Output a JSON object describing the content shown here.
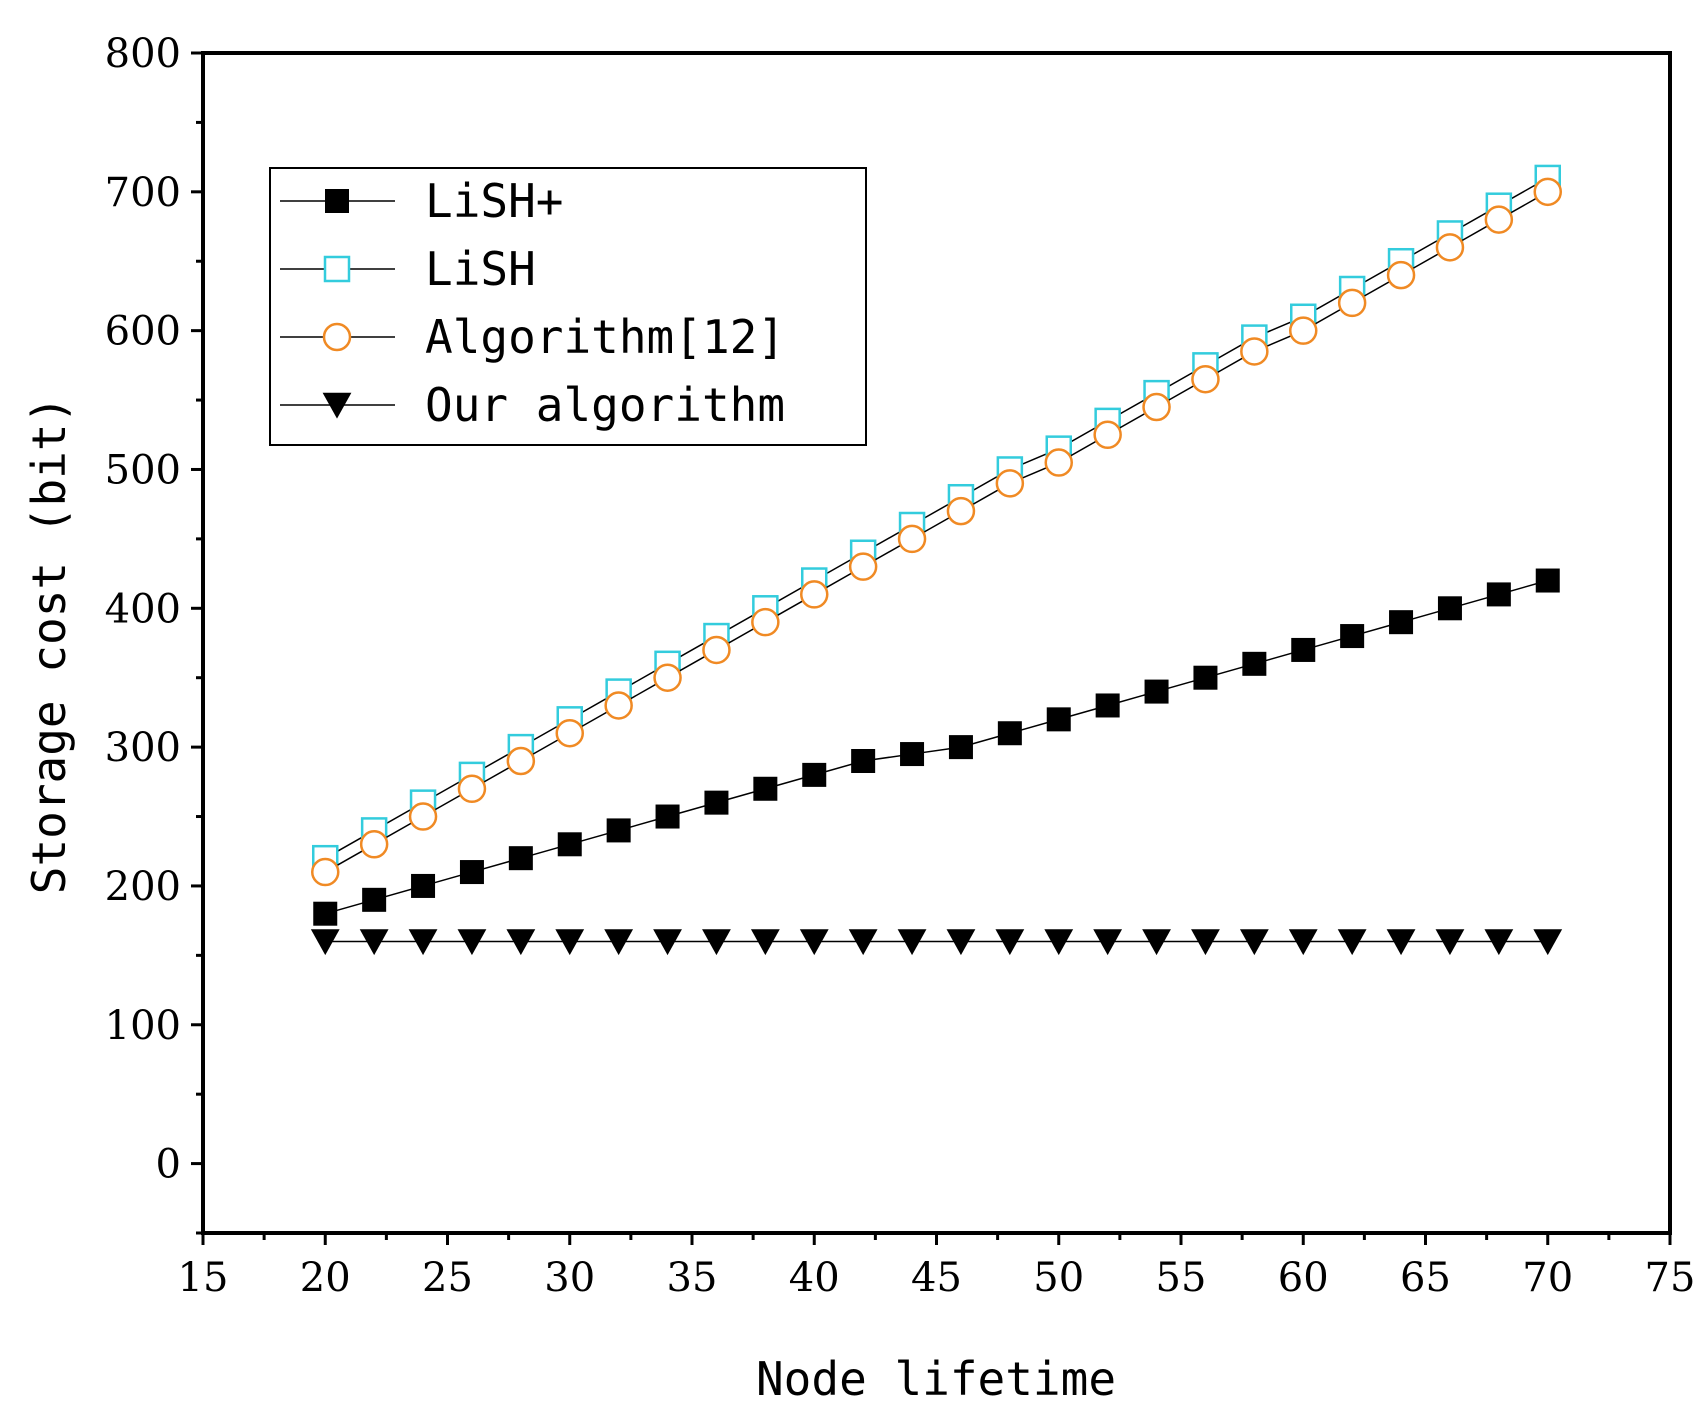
{
  "chart_data": {
    "type": "line",
    "title": "",
    "xlabel": "Node lifetime",
    "ylabel": "Storage cost (bit)",
    "xlim": [
      15,
      75
    ],
    "ylim": [
      -50,
      800
    ],
    "x_ticks": [
      15,
      20,
      25,
      30,
      35,
      40,
      45,
      50,
      55,
      60,
      65,
      70,
      75
    ],
    "y_ticks": [
      0,
      100,
      200,
      300,
      400,
      500,
      600,
      700,
      800
    ],
    "x_tick_labels": [
      "15",
      "20",
      "25",
      "30",
      "35",
      "40",
      "45",
      "50",
      "55",
      "60",
      "65",
      "70",
      "75"
    ],
    "y_tick_labels": [
      "0",
      "100",
      "200",
      "300",
      "400",
      "500",
      "600",
      "700",
      "800"
    ],
    "legend_position": "top-left",
    "x": [
      20,
      22,
      24,
      26,
      28,
      30,
      32,
      34,
      36,
      38,
      40,
      42,
      44,
      46,
      48,
      50,
      52,
      54,
      56,
      58,
      60,
      62,
      64,
      66,
      68,
      70
    ],
    "series": [
      {
        "name": "LiSH+",
        "marker": "filled-square",
        "color": "#000000",
        "values": [
          180,
          190,
          200,
          210,
          220,
          230,
          240,
          250,
          260,
          270,
          280,
          290,
          295,
          300,
          310,
          320,
          330,
          340,
          350,
          360,
          370,
          380,
          390,
          400,
          410,
          420
        ]
      },
      {
        "name": "LiSH",
        "marker": "open-square",
        "color": "#33CCDD",
        "values": [
          220,
          240,
          260,
          280,
          300,
          320,
          340,
          360,
          380,
          400,
          420,
          440,
          460,
          480,
          500,
          515,
          535,
          555,
          575,
          595,
          610,
          630,
          650,
          670,
          690,
          710
        ]
      },
      {
        "name": "Algorithm[12]",
        "marker": "open-circle",
        "color": "#F08A24",
        "values": [
          210,
          230,
          250,
          270,
          290,
          310,
          330,
          350,
          370,
          390,
          410,
          430,
          450,
          470,
          490,
          505,
          525,
          545,
          565,
          585,
          600,
          620,
          640,
          660,
          680,
          700
        ]
      },
      {
        "name": "Our algorithm",
        "marker": "filled-down-triangle",
        "color": "#000000",
        "values": [
          160,
          160,
          160,
          160,
          160,
          160,
          160,
          160,
          160,
          160,
          160,
          160,
          160,
          160,
          160,
          160,
          160,
          160,
          160,
          160,
          160,
          160,
          160,
          160,
          160,
          160
        ]
      }
    ]
  }
}
